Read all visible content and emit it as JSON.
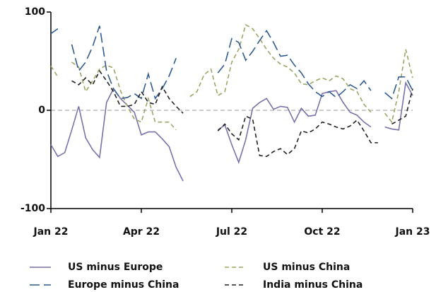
{
  "chart_data": {
    "type": "line",
    "x": [
      0,
      1,
      2,
      3,
      4,
      5,
      6,
      7,
      8,
      9,
      10,
      11,
      12,
      13,
      14,
      15,
      16,
      17,
      18,
      19,
      20,
      21,
      22,
      23,
      24,
      25,
      26,
      27,
      28,
      29,
      30,
      31,
      32,
      33,
      34,
      35,
      36,
      37,
      38,
      39,
      40,
      41,
      42,
      43,
      44,
      45,
      46,
      47,
      48,
      49,
      50,
      51,
      52
    ],
    "xlim": [
      0,
      52
    ],
    "xticks": [
      {
        "value": 0,
        "label": "Jan 22"
      },
      {
        "value": 13,
        "label": "Apr 22"
      },
      {
        "value": 26,
        "label": "Jul 22"
      },
      {
        "value": 39,
        "label": "Oct 22"
      },
      {
        "value": 52,
        "label": "Jan 23"
      }
    ],
    "ylim": [
      -100,
      100
    ],
    "yticks": [
      -100,
      0,
      100
    ],
    "zero_line": true,
    "series": [
      {
        "name": "US minus Europe",
        "color": "#7b70a9",
        "dash": "none",
        "values": [
          -35,
          -47,
          -43,
          -20,
          4,
          -28,
          -40,
          -48,
          8,
          22,
          12,
          5,
          -2,
          -25,
          -22,
          -22,
          -29,
          -37,
          -58,
          -72,
          null,
          null,
          null,
          null,
          -20,
          -15,
          -35,
          -53,
          -30,
          2,
          8,
          12,
          1,
          4,
          3,
          -12,
          2,
          -6,
          -5,
          17,
          19,
          20,
          8,
          -2,
          -5,
          -12,
          -17,
          null,
          -17,
          -19,
          -20,
          28,
          15
        ]
      },
      {
        "name": "US minus China",
        "color": "#9ca566",
        "dash": "6 4",
        "values": [
          45,
          34,
          null,
          49,
          44,
          19,
          30,
          42,
          46,
          43,
          20,
          4,
          -9,
          -12,
          12,
          -12,
          -12,
          -12,
          -20,
          null,
          14,
          19,
          36,
          42,
          15,
          19,
          49,
          62,
          87,
          83,
          73,
          62,
          53,
          47,
          44,
          38,
          27,
          26,
          30,
          33,
          30,
          35,
          32,
          22,
          19,
          6,
          -2,
          null,
          -3,
          -12,
          19,
          62,
          33
        ]
      },
      {
        "name": "Europe minus China",
        "color": "#2f5b8f",
        "dash": "14 6",
        "values": [
          78,
          83,
          null,
          67,
          40,
          49,
          65,
          86,
          40,
          22,
          12,
          13,
          17,
          12,
          37,
          12,
          22,
          35,
          53,
          null,
          null,
          null,
          null,
          null,
          38,
          47,
          73,
          69,
          51,
          60,
          71,
          81,
          69,
          55,
          56,
          46,
          38,
          27,
          19,
          14,
          19,
          13,
          19,
          26,
          22,
          30,
          20,
          null,
          18,
          12,
          34,
          34,
          20
        ]
      },
      {
        "name": "India minus China",
        "color": "#222222",
        "dash": "6 4",
        "values": [
          null,
          null,
          null,
          30,
          26,
          33,
          26,
          40,
          30,
          19,
          4,
          4,
          6,
          19,
          8,
          6,
          24,
          12,
          4,
          -3,
          null,
          null,
          null,
          null,
          -21,
          -14,
          -24,
          -30,
          -6,
          -9,
          -46,
          -47,
          -42,
          -39,
          -45,
          -39,
          -21,
          -23,
          -19,
          -12,
          -14,
          -17,
          -19,
          -16,
          -10,
          -21,
          -33,
          -33,
          null,
          -14,
          -10,
          -6,
          22
        ]
      }
    ]
  }
}
